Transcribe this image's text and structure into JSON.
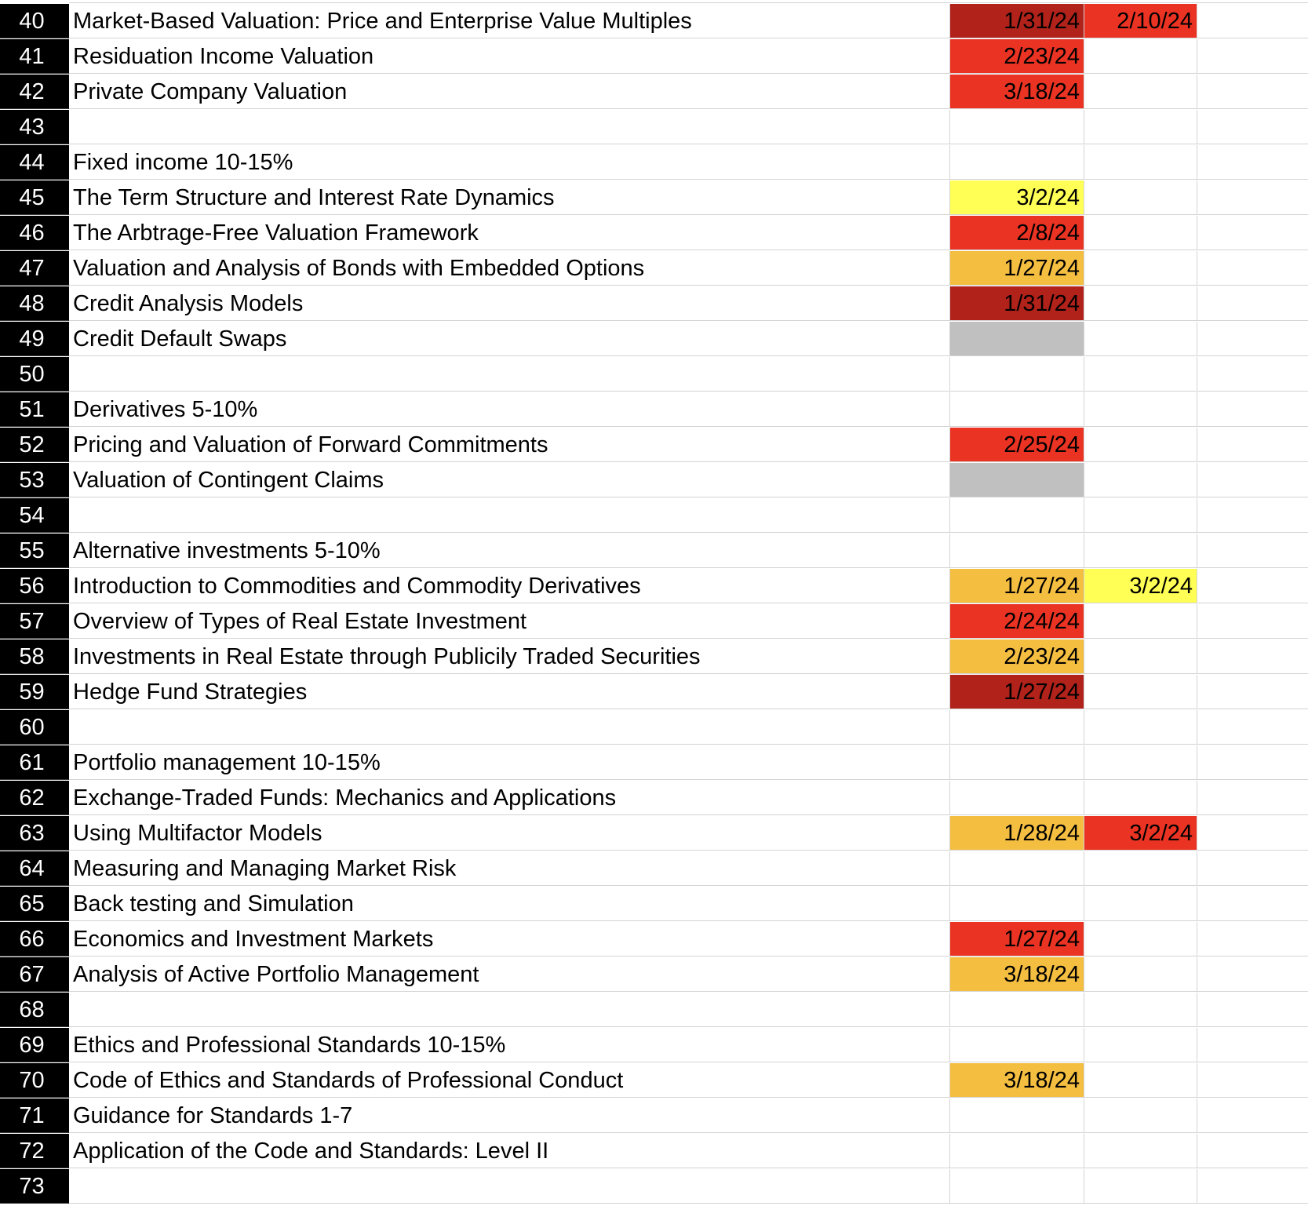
{
  "colors": {
    "dark_red": "#b0221a",
    "red": "#ea3323",
    "orange": "#f4be41",
    "yellow": "#ffff55",
    "gray": "#c0c0c0",
    "none": "#ffffff"
  },
  "rows": [
    {
      "num": "40",
      "label": "Market-Based Valuation: Price and Enterprise Value Multiples",
      "b": "1/31/24",
      "b_fill": "dark_red",
      "c": "2/10/24",
      "c_fill": "red"
    },
    {
      "num": "41",
      "label": "Residuation Income Valuation",
      "b": "2/23/24",
      "b_fill": "red",
      "c": "",
      "c_fill": "none"
    },
    {
      "num": "42",
      "label": "Private Company Valuation",
      "b": "3/18/24",
      "b_fill": "red",
      "c": "",
      "c_fill": "none"
    },
    {
      "num": "43",
      "label": "",
      "b": "",
      "b_fill": "none",
      "c": "",
      "c_fill": "none"
    },
    {
      "num": "44",
      "label": "Fixed income 10-15%",
      "b": "",
      "b_fill": "none",
      "c": "",
      "c_fill": "none"
    },
    {
      "num": "45",
      "label": "The Term Structure and Interest Rate Dynamics",
      "b": "3/2/24",
      "b_fill": "yellow",
      "c": "",
      "c_fill": "none"
    },
    {
      "num": "46",
      "label": "The Arbtrage-Free Valuation Framework",
      "b": "2/8/24",
      "b_fill": "red",
      "c": "",
      "c_fill": "none"
    },
    {
      "num": "47",
      "label": "Valuation and Analysis of Bonds with Embedded Options",
      "b": "1/27/24",
      "b_fill": "orange",
      "c": "",
      "c_fill": "none"
    },
    {
      "num": "48",
      "label": "Credit Analysis Models",
      "b": "1/31/24",
      "b_fill": "dark_red",
      "c": "",
      "c_fill": "none"
    },
    {
      "num": "49",
      "label": "Credit Default Swaps",
      "b": "",
      "b_fill": "gray",
      "c": "",
      "c_fill": "none"
    },
    {
      "num": "50",
      "label": "",
      "b": "",
      "b_fill": "none",
      "c": "",
      "c_fill": "none"
    },
    {
      "num": "51",
      "label": "Derivatives 5-10%",
      "b": "",
      "b_fill": "none",
      "c": "",
      "c_fill": "none"
    },
    {
      "num": "52",
      "label": "Pricing and Valuation of Forward Commitments",
      "b": "2/25/24",
      "b_fill": "red",
      "c": "",
      "c_fill": "none"
    },
    {
      "num": "53",
      "label": "Valuation of Contingent Claims",
      "b": "",
      "b_fill": "gray",
      "c": "",
      "c_fill": "none"
    },
    {
      "num": "54",
      "label": "",
      "b": "",
      "b_fill": "none",
      "c": "",
      "c_fill": "none"
    },
    {
      "num": "55",
      "label": "Alternative investments 5-10%",
      "b": "",
      "b_fill": "none",
      "c": "",
      "c_fill": "none"
    },
    {
      "num": "56",
      "label": "Introduction to Commodities and Commodity Derivatives",
      "b": "1/27/24",
      "b_fill": "orange",
      "c": "3/2/24",
      "c_fill": "yellow"
    },
    {
      "num": "57",
      "label": "Overview of Types of Real Estate Investment",
      "b": "2/24/24",
      "b_fill": "red",
      "c": "",
      "c_fill": "none"
    },
    {
      "num": "58",
      "label": "Investments in Real Estate through Publicily Traded Securities",
      "b": "2/23/24",
      "b_fill": "orange",
      "c": "",
      "c_fill": "none"
    },
    {
      "num": "59",
      "label": "Hedge Fund Strategies",
      "b": "1/27/24",
      "b_fill": "dark_red",
      "c": "",
      "c_fill": "none"
    },
    {
      "num": "60",
      "label": "",
      "b": "",
      "b_fill": "none",
      "c": "",
      "c_fill": "none"
    },
    {
      "num": "61",
      "label": "Portfolio management 10-15%",
      "b": "",
      "b_fill": "none",
      "c": "",
      "c_fill": "none"
    },
    {
      "num": "62",
      "label": "Exchange-Traded Funds: Mechanics and Applications",
      "b": "",
      "b_fill": "none",
      "c": "",
      "c_fill": "none"
    },
    {
      "num": "63",
      "label": "Using Multifactor Models",
      "b": "1/28/24",
      "b_fill": "orange",
      "c": "3/2/24",
      "c_fill": "red"
    },
    {
      "num": "64",
      "label": "Measuring and Managing Market Risk",
      "b": "",
      "b_fill": "none",
      "c": "",
      "c_fill": "none"
    },
    {
      "num": "65",
      "label": "Back testing and Simulation",
      "b": "",
      "b_fill": "none",
      "c": "",
      "c_fill": "none"
    },
    {
      "num": "66",
      "label": "Economics and Investment Markets",
      "b": "1/27/24",
      "b_fill": "red",
      "c": "",
      "c_fill": "none"
    },
    {
      "num": "67",
      "label": "Analysis of Active Portfolio Management",
      "b": "3/18/24",
      "b_fill": "orange",
      "c": "",
      "c_fill": "none"
    },
    {
      "num": "68",
      "label": "",
      "b": "",
      "b_fill": "none",
      "c": "",
      "c_fill": "none"
    },
    {
      "num": "69",
      "label": "Ethics and Professional Standards 10-15%",
      "b": "",
      "b_fill": "none",
      "c": "",
      "c_fill": "none"
    },
    {
      "num": "70",
      "label": "Code of Ethics and Standards of Professional Conduct",
      "b": "3/18/24",
      "b_fill": "orange",
      "c": "",
      "c_fill": "none"
    },
    {
      "num": "71",
      "label": "Guidance for Standards 1-7",
      "b": "",
      "b_fill": "none",
      "c": "",
      "c_fill": "none"
    },
    {
      "num": "72",
      "label": "Application of the Code and Standards: Level II",
      "b": "",
      "b_fill": "none",
      "c": "",
      "c_fill": "none"
    },
    {
      "num": "73",
      "label": "",
      "b": "",
      "b_fill": "none",
      "c": "",
      "c_fill": "none"
    }
  ]
}
